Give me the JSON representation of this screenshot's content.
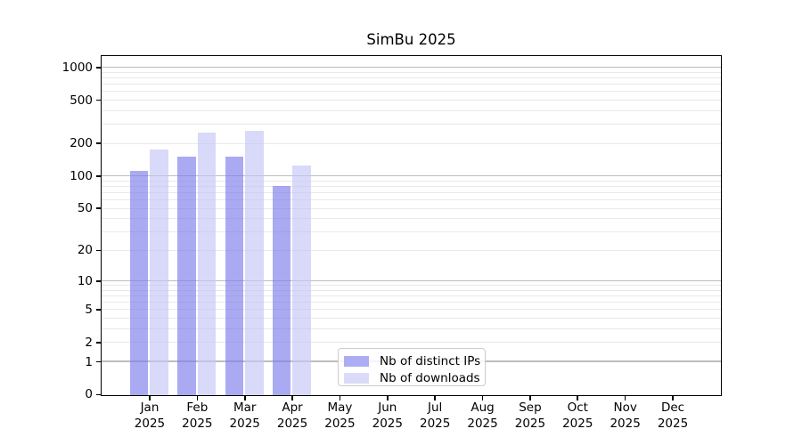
{
  "chart_data": {
    "type": "bar",
    "title": "SimBu 2025",
    "xlabel": "",
    "ylabel": "",
    "categories": [
      "Jan",
      "Feb",
      "Mar",
      "Apr",
      "May",
      "Jun",
      "Jul",
      "Aug",
      "Sep",
      "Oct",
      "Nov",
      "Dec"
    ],
    "x_tick_line2": "2025",
    "series": [
      {
        "name": "Nb of distinct IPs",
        "color": "rgba(125,125,235,0.65)",
        "solid_color": "#adadf3",
        "values": [
          114,
          153,
          153,
          82,
          0,
          0,
          0,
          0,
          0,
          0,
          0,
          0
        ]
      },
      {
        "name": "Nb of downloads",
        "color": "rgba(197,197,247,0.65)",
        "solid_color": "#dbdbf9",
        "values": [
          177,
          255,
          265,
          127,
          0,
          0,
          0,
          0,
          0,
          0,
          0,
          0
        ]
      }
    ],
    "y_axis": {
      "scale": "log10(1+y)",
      "ticks": [
        0,
        1,
        2,
        5,
        10,
        20,
        50,
        100,
        200,
        500,
        1000
      ],
      "ylim": [
        0,
        1260
      ],
      "major_gridlines": [
        1,
        10,
        100,
        1000
      ],
      "minor_gridlines": [
        2,
        3,
        4,
        5,
        6,
        7,
        8,
        9,
        20,
        30,
        40,
        50,
        60,
        70,
        80,
        90,
        200,
        300,
        400,
        500,
        600,
        700,
        800,
        900
      ]
    },
    "legend": {
      "position": "lower center",
      "entries": [
        "Nb of distinct IPs",
        "Nb of downloads"
      ]
    },
    "grid": true
  },
  "colors": {
    "background": "#ffffff",
    "axis": "#000000",
    "major_grid": "#bdbdbd",
    "minor_grid": "#e9e9e9",
    "legend_border": "#cccccc"
  }
}
